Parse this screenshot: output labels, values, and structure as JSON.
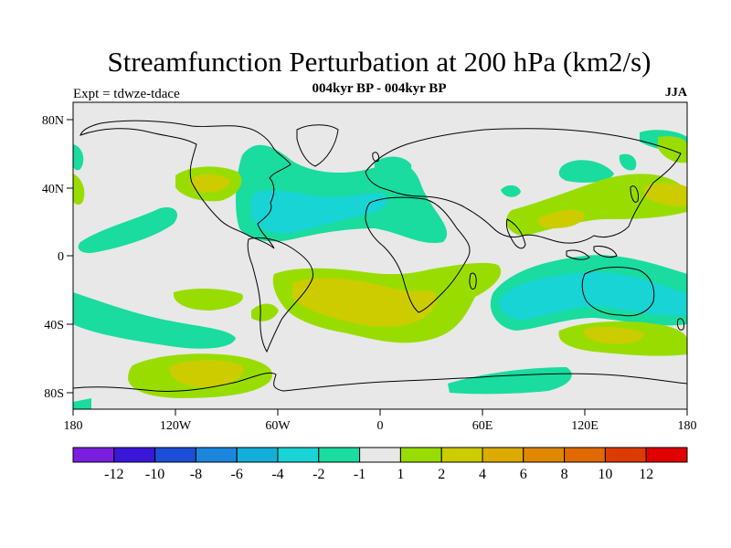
{
  "figure": {
    "title": "Streamfunction Perturbation at 200 hPa (km2/s)",
    "subtitle": "004kyr BP - 004kyr BP",
    "left_label": "Expt = tdwze-tdace",
    "right_label": "JJA"
  },
  "axes": {
    "x_ticks": [
      "180",
      "120W",
      "60W",
      "0",
      "60E",
      "120E",
      "180"
    ],
    "y_ticks": [
      "80N",
      "40N",
      "0",
      "40S",
      "80S"
    ]
  },
  "colorbar": {
    "colors": [
      "#7a1fe0",
      "#3a17d8",
      "#1b4fd6",
      "#1b86dc",
      "#12b0d8",
      "#19d4d4",
      "#19dc9e",
      "#e8e8e8",
      "#99dd00",
      "#cccc00",
      "#dcaa00",
      "#e08800",
      "#e06a00",
      "#dd3a00",
      "#e00000"
    ],
    "labels": [
      "-12",
      "-10",
      "-8",
      "-6",
      "-4",
      "-2",
      "-1",
      "1",
      "2",
      "4",
      "6",
      "8",
      "10",
      "12"
    ]
  }
}
